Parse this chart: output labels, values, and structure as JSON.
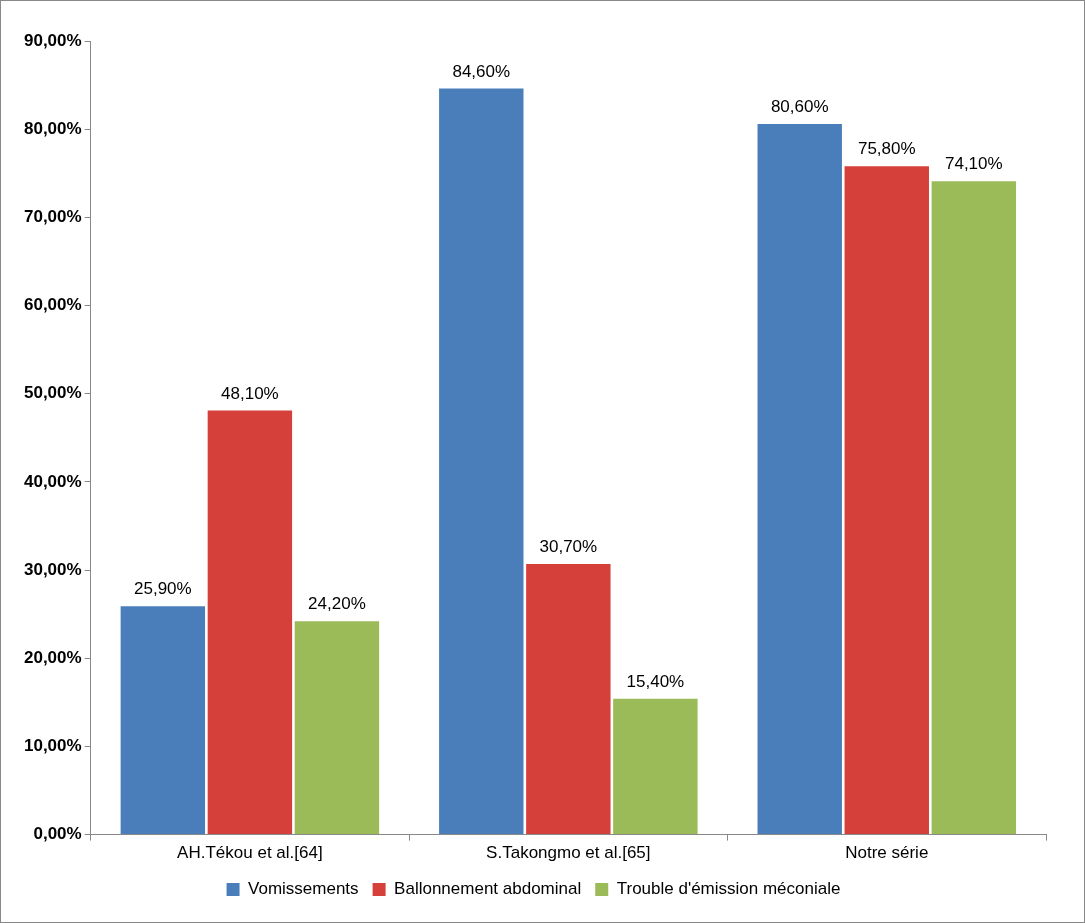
{
  "chart_data": {
    "type": "bar",
    "categories": [
      "AH.Tékou et al.[64]",
      "S.Takongmo et al.[65]",
      "Notre série"
    ],
    "series": [
      {
        "name": "Vomissements",
        "color": "#4a7ebb",
        "values": [
          25.9,
          84.6,
          80.6
        ],
        "value_labels": [
          "25,90%",
          "84,60%",
          "80,60%"
        ]
      },
      {
        "name": "Ballonnement abdominal",
        "color": "#d6403b",
        "values": [
          48.1,
          30.7,
          75.8
        ],
        "value_labels": [
          "48,10%",
          "30,70%",
          "75,80%"
        ]
      },
      {
        "name": "Trouble d'émission méconiale",
        "color": "#9bbb59",
        "values": [
          24.2,
          15.4,
          74.1
        ],
        "value_labels": [
          "24,20%",
          "15,40%",
          "74,10%"
        ]
      }
    ],
    "ylim": [
      0,
      90
    ],
    "yticks": [
      {
        "value": 0,
        "label": "0,00%"
      },
      {
        "value": 10,
        "label": "10,00%"
      },
      {
        "value": 20,
        "label": "20,00%"
      },
      {
        "value": 30,
        "label": "30,00%"
      },
      {
        "value": 40,
        "label": "40,00%"
      },
      {
        "value": 50,
        "label": "50,00%"
      },
      {
        "value": 60,
        "label": "60,00%"
      },
      {
        "value": 70,
        "label": "70,00%"
      },
      {
        "value": 80,
        "label": "80,00%"
      },
      {
        "value": 90,
        "label": "90,00%"
      }
    ],
    "grid": false,
    "legend": "bottom"
  }
}
